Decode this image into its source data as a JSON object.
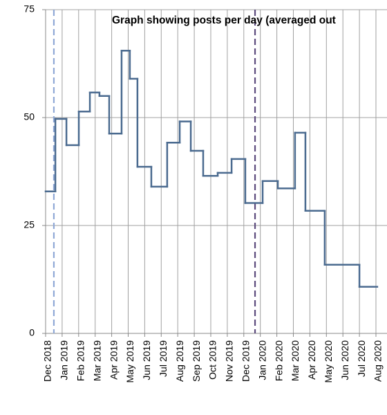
{
  "chart_data": {
    "type": "step",
    "title": "Graph showing posts per day (averaged out",
    "x_edges": [
      0,
      0.59,
      1.26,
      2.01,
      2.68,
      3.26,
      3.85,
      4.6,
      5.1,
      5.56,
      6.4,
      7.36,
      8.12,
      8.79,
      9.54,
      10.42,
      11.26,
      12.09,
      13.14,
      14.06,
      15.1,
      15.73,
      16.9,
      19.0,
      20.08
    ],
    "values": [
      32.9,
      49.7,
      43.6,
      51.4,
      55.8,
      55,
      46.3,
      65.5,
      59,
      38.6,
      34,
      44.2,
      49.1,
      42.3,
      36.5,
      37.2,
      40.4,
      30.2,
      35.3,
      33.6,
      46.5,
      28.4,
      15.9,
      10.8
    ],
    "color": "#4a6a8f",
    "xlim": [
      0,
      20.67
    ],
    "xticks": [
      {
        "value": 0,
        "label": "Dec 2018"
      },
      {
        "value": 1,
        "label": "Jan 2019"
      },
      {
        "value": 2,
        "label": "Feb 2019"
      },
      {
        "value": 3,
        "label": "Mar 2019"
      },
      {
        "value": 4,
        "label": "Apr 2019"
      },
      {
        "value": 5,
        "label": "May 2019"
      },
      {
        "value": 6,
        "label": "Jun 2019"
      },
      {
        "value": 7,
        "label": "Jul 2019"
      },
      {
        "value": 8,
        "label": "Aug 2019"
      },
      {
        "value": 9,
        "label": "Sep 2019"
      },
      {
        "value": 10,
        "label": "Oct 2019"
      },
      {
        "value": 11,
        "label": "Nov 2019"
      },
      {
        "value": 12,
        "label": "Dec 2019"
      },
      {
        "value": 13,
        "label": "Jan 2020"
      },
      {
        "value": 14,
        "label": "Feb 2020"
      },
      {
        "value": 15,
        "label": "Mar 2020"
      },
      {
        "value": 16,
        "label": "Apr 2020"
      },
      {
        "value": 17,
        "label": "May 2020"
      },
      {
        "value": 18,
        "label": "Jun 2020"
      },
      {
        "value": 19,
        "label": "Jul 2020"
      },
      {
        "value": 20,
        "label": "Aug 2020"
      }
    ],
    "ylim": [
      0,
      75
    ],
    "yticks": [
      0,
      25,
      50,
      75
    ],
    "grid": true,
    "vlines": [
      {
        "x": 0.5,
        "color": "#8fa8d6"
      },
      {
        "x": 12.68,
        "color": "#5b4a7c"
      }
    ]
  }
}
